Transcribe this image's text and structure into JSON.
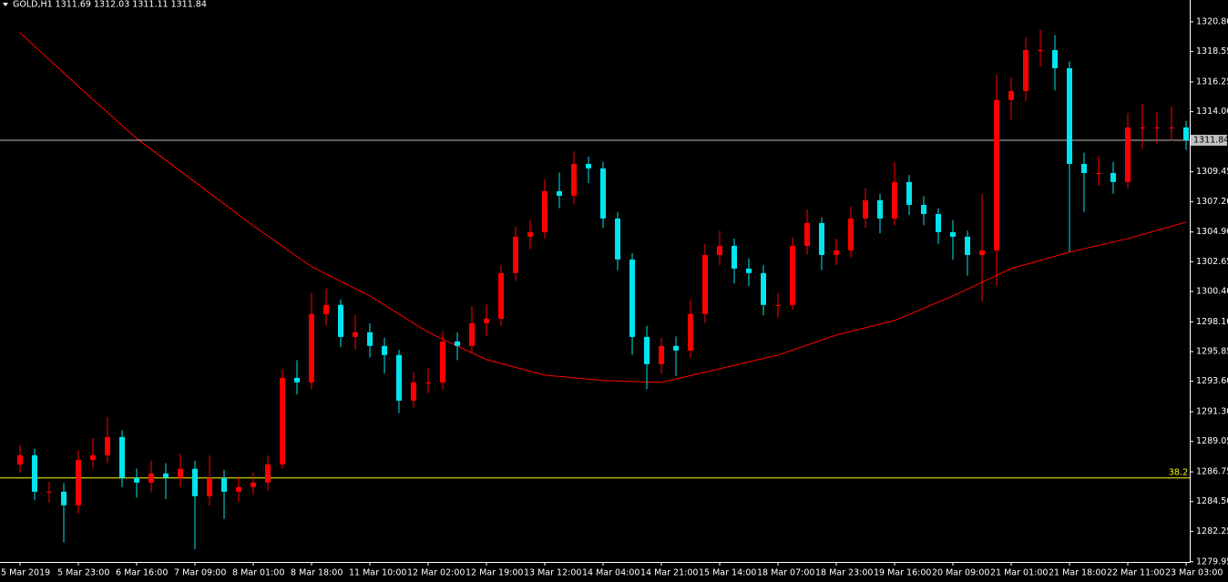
{
  "chart_data": {
    "type": "candlestick",
    "title": "GOLD,H1  1311.69 1312.03 1311.11 1311.84",
    "categories": [
      "5 Mar 2019",
      null,
      null,
      null,
      "5 Mar 23:00",
      null,
      null,
      null,
      "6 Mar 16:00",
      null,
      null,
      null,
      "7 Mar 09:00",
      null,
      null,
      null,
      "8 Mar 01:00",
      null,
      null,
      null,
      "8 Mar 18:00",
      null,
      null,
      null,
      "11 Mar 10:00",
      null,
      null,
      null,
      "12 Mar 02:00",
      null,
      null,
      null,
      "12 Mar 19:00",
      null,
      null,
      null,
      "13 Mar 12:00",
      null,
      null,
      null,
      "14 Mar 04:00",
      null,
      null,
      null,
      "14 Mar 21:00",
      null,
      null,
      null,
      "15 Mar 14:00",
      null,
      null,
      null,
      "18 Mar 07:00",
      null,
      null,
      null,
      "18 Mar 23:00",
      null,
      null,
      null,
      "19 Mar 16:00",
      null,
      null,
      null,
      "20 Mar 09:00",
      null,
      null,
      null,
      "21 Mar 01:00",
      null,
      null,
      null,
      "21 Mar 18:00",
      null,
      null,
      null,
      "22 Mar 11:00",
      null,
      null,
      null,
      "23 Mar 03:00"
    ],
    "open": [
      1287.3,
      1288.01,
      1285.25,
      1285.25,
      1284.22,
      1287.66,
      1288.01,
      1289.39,
      1286.29,
      1285.94,
      1286.63,
      1286.29,
      1286.98,
      1284.91,
      1286.29,
      1285.25,
      1285.6,
      1285.94,
      1287.32,
      1293.86,
      1293.52,
      1298.69,
      1299.38,
      1296.96,
      1297.31,
      1296.28,
      1295.59,
      1292.14,
      1293.52,
      1293.52,
      1296.62,
      1296.28,
      1298.0,
      1298.34,
      1301.79,
      1304.54,
      1304.89,
      1307.99,
      1307.64,
      1310.05,
      1309.71,
      1305.92,
      1302.82,
      1296.96,
      1294.9,
      1296.28,
      1295.93,
      1298.69,
      1303.16,
      1303.85,
      1302.13,
      1301.79,
      1299.38,
      1299.38,
      1303.85,
      1305.58,
      1303.16,
      1303.51,
      1305.92,
      1307.3,
      1305.92,
      1308.68,
      1306.95,
      1306.26,
      1304.89,
      1304.54,
      1303.16,
      1303.51,
      1314.88,
      1315.56,
      1318.66,
      1318.66,
      1317.29,
      1310.05,
      1309.36,
      1309.36,
      1308.68,
      1312.81,
      1312.81,
      1312.81,
      1312.81
    ],
    "high": [
      1288.8,
      1288.5,
      1286.0,
      1285.9,
      1288.4,
      1289.3,
      1290.9,
      1289.9,
      1287.0,
      1287.6,
      1287.4,
      1288.1,
      1287.6,
      1288.0,
      1286.9,
      1286.4,
      1286.7,
      1288.0,
      1294.5,
      1295.2,
      1300.3,
      1300.6,
      1299.8,
      1298.6,
      1298.0,
      1296.9,
      1296.0,
      1294.3,
      1294.6,
      1297.4,
      1297.3,
      1299.3,
      1299.4,
      1302.4,
      1305.3,
      1305.8,
      1308.9,
      1309.4,
      1311.0,
      1310.6,
      1310.2,
      1306.4,
      1303.3,
      1297.8,
      1296.9,
      1297.0,
      1299.8,
      1304.0,
      1305.0,
      1304.4,
      1302.9,
      1302.4,
      1300.3,
      1304.5,
      1306.6,
      1306.0,
      1304.4,
      1306.8,
      1308.2,
      1307.8,
      1310.2,
      1309.2,
      1307.6,
      1306.7,
      1305.8,
      1305.0,
      1307.8,
      1316.8,
      1316.6,
      1319.6,
      1320.2,
      1319.8,
      1317.8,
      1310.9,
      1310.6,
      1310.2,
      1313.9,
      1314.6,
      1314.0,
      1314.4,
      1313.3
    ],
    "low": [
      1286.7,
      1284.6,
      1284.4,
      1281.4,
      1283.6,
      1287.0,
      1287.4,
      1285.6,
      1284.8,
      1285.2,
      1284.7,
      1285.6,
      1280.9,
      1284.2,
      1283.2,
      1284.5,
      1285.0,
      1285.3,
      1287.0,
      1292.6,
      1293.0,
      1297.8,
      1296.2,
      1296.0,
      1295.4,
      1294.2,
      1291.2,
      1291.6,
      1292.7,
      1293.0,
      1295.2,
      1295.7,
      1297.0,
      1297.8,
      1301.2,
      1303.6,
      1304.4,
      1306.7,
      1307.0,
      1308.6,
      1305.2,
      1302.0,
      1295.6,
      1293.0,
      1294.2,
      1294.0,
      1295.4,
      1298.0,
      1302.4,
      1301.0,
      1300.8,
      1298.6,
      1298.4,
      1299.0,
      1303.2,
      1302.0,
      1302.4,
      1303.0,
      1305.2,
      1304.8,
      1305.4,
      1306.2,
      1305.4,
      1304.0,
      1302.8,
      1301.6,
      1299.6,
      1300.8,
      1313.4,
      1314.8,
      1317.4,
      1315.6,
      1303.4,
      1306.4,
      1308.4,
      1307.8,
      1308.2,
      1311.2,
      1311.6,
      1311.8,
      1311.11
    ],
    "close": [
      1288.01,
      1285.25,
      1285.25,
      1284.22,
      1287.66,
      1288.01,
      1289.39,
      1286.29,
      1285.94,
      1286.63,
      1286.29,
      1286.98,
      1284.91,
      1286.29,
      1285.25,
      1285.6,
      1285.94,
      1287.32,
      1293.86,
      1293.52,
      1298.69,
      1299.38,
      1296.96,
      1297.31,
      1296.28,
      1295.59,
      1292.14,
      1293.52,
      1293.52,
      1296.62,
      1296.28,
      1298.0,
      1298.34,
      1301.79,
      1304.54,
      1304.89,
      1307.99,
      1307.64,
      1310.05,
      1309.71,
      1305.92,
      1302.82,
      1296.96,
      1294.9,
      1296.28,
      1295.93,
      1298.69,
      1303.16,
      1303.85,
      1302.13,
      1301.79,
      1299.38,
      1299.38,
      1303.85,
      1305.58,
      1303.16,
      1303.51,
      1305.92,
      1307.3,
      1305.92,
      1308.68,
      1306.95,
      1306.26,
      1304.89,
      1304.54,
      1303.16,
      1303.51,
      1314.88,
      1315.56,
      1318.66,
      1318.66,
      1317.29,
      1310.05,
      1309.36,
      1309.36,
      1308.68,
      1312.81,
      1312.81,
      1312.81,
      1312.81,
      1311.84
    ],
    "up_color": "#ff0000",
    "down_color": "#00e5ee",
    "moving_average": {
      "color": "#ff0000",
      "x": [
        0,
        4,
        8,
        12,
        16,
        20,
        24,
        28,
        32,
        36,
        40,
        44,
        48,
        52,
        56,
        60,
        64,
        68,
        72,
        76,
        80
      ],
      "values": [
        1319.97,
        1315.91,
        1311.98,
        1308.68,
        1305.37,
        1302.27,
        1300.06,
        1297.31,
        1295.24,
        1294.07,
        1293.66,
        1293.52,
        1294.55,
        1295.59,
        1297.1,
        1298.2,
        1300.06,
        1302.13,
        1303.37,
        1304.4,
        1305.64
      ]
    },
    "price_line": 1311.84,
    "fib_level": {
      "value": 1286.29,
      "label": "38.2",
      "color": "#ffff00"
    },
    "ylim": [
      1278.9,
      1322.45
    ],
    "yticks": [
      {
        "value": 1320.8,
        "label": "1320.80"
      },
      {
        "value": 1318.55,
        "label": "1318.55"
      },
      {
        "value": 1316.25,
        "label": "1316.25"
      },
      {
        "value": 1314.0,
        "label": "1314.00"
      },
      {
        "value": 1309.45,
        "label": "1309.45"
      },
      {
        "value": 1307.2,
        "label": "1307.20"
      },
      {
        "value": 1304.9,
        "label": "1304.90"
      },
      {
        "value": 1302.65,
        "label": "1302.65"
      },
      {
        "value": 1300.4,
        "label": "1300.40"
      },
      {
        "value": 1298.1,
        "label": "1298.10"
      },
      {
        "value": 1295.85,
        "label": "1295.85"
      },
      {
        "value": 1293.6,
        "label": "1293.60"
      },
      {
        "value": 1291.3,
        "label": "1291.30"
      },
      {
        "value": 1289.05,
        "label": "1289.05"
      },
      {
        "value": 1286.75,
        "label": "1286.75"
      },
      {
        "value": 1284.5,
        "label": "1284.50"
      },
      {
        "value": 1282.25,
        "label": "1282.25"
      },
      {
        "value": 1279.95,
        "label": "1279.95"
      }
    ]
  }
}
